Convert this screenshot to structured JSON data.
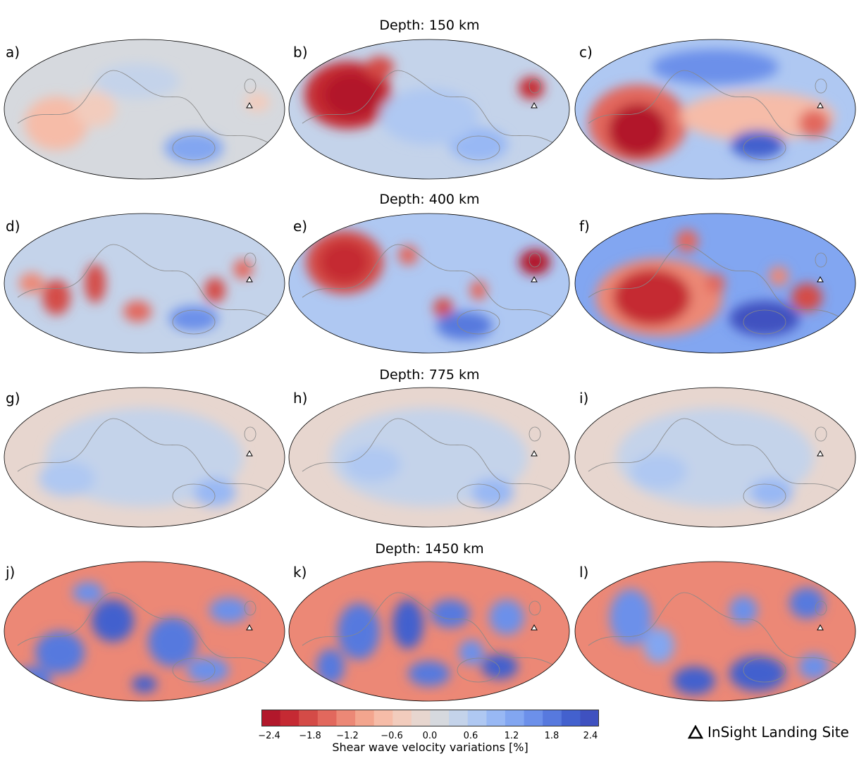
{
  "rows": [
    {
      "title": "Depth: 150 km",
      "panels": [
        "a)",
        "b)",
        "c)"
      ]
    },
    {
      "title": "Depth: 400 km",
      "panels": [
        "d)",
        "e)",
        "f)"
      ]
    },
    {
      "title": "Depth: 775 km",
      "panels": [
        "g)",
        "h)",
        "i)"
      ]
    },
    {
      "title": "Depth: 1450 km",
      "panels": [
        "j)",
        "k)",
        "l)"
      ]
    }
  ],
  "colorbar": {
    "label": "Shear wave velocity variations [%]",
    "ticks": [
      "−2.4",
      "−1.8",
      "−1.2",
      "−0.6",
      "0.0",
      "0.6",
      "1.2",
      "1.8",
      "2.4"
    ],
    "range": [
      -2.4,
      2.4
    ],
    "colors": [
      "#b2182b",
      "#c52a33",
      "#d44b47",
      "#e2685d",
      "#ec8876",
      "#f3a58e",
      "#f6bca8",
      "#f2ccbd",
      "#e7d6cf",
      "#d6d9de",
      "#c4d3ea",
      "#afc8f2",
      "#98b8f4",
      "#82a6f1",
      "#6c90ea",
      "#5779de",
      "#4361ce",
      "#3f51c0"
    ]
  },
  "legend": {
    "label": "InSight Landing Site"
  },
  "chart_data": {
    "type": "heatmap",
    "projection": "mollweide",
    "quantity": "Shear wave velocity variations [%]",
    "value_range": [
      -2.4,
      2.4
    ],
    "depths_km": [
      150,
      400,
      775,
      1450
    ],
    "panels_per_depth": 3,
    "landmark": "InSight Landing Site"
  }
}
